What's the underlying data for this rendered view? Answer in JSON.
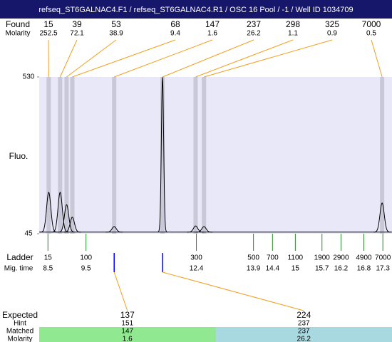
{
  "title": "refseq_ST6GALNAC4.F1 / refseq_ST6GALNAC4.R1 / OSC 16 Pool / -1 / Well ID 1034709",
  "chart_data": {
    "type": "electropherogram",
    "found_label": "Found",
    "molarity_label": "Molarity",
    "found": [
      {
        "size": 15,
        "molarity": 252.5,
        "time": 8.52,
        "height": 173
      },
      {
        "size": 39,
        "molarity": 72.1,
        "time": 8.82,
        "height": 173
      },
      {
        "size": 53,
        "molarity": 38.9,
        "time": 8.99,
        "height": 135
      },
      {
        "size": 68,
        "molarity": 9.4,
        "time": 9.14,
        "height": 96
      },
      {
        "size": 147,
        "molarity": 1.6,
        "time": 10.24,
        "height": 67
      },
      {
        "size": 237,
        "molarity": 26.2,
        "time": 11.51,
        "height": 530
      },
      {
        "size": 298,
        "molarity": 1.1,
        "time": 12.38,
        "height": 69
      },
      {
        "size": 325,
        "molarity": 0.9,
        "time": 12.6,
        "height": 67
      },
      {
        "size": 7000,
        "molarity": 0.5,
        "time": 17.28,
        "height": 140
      }
    ],
    "ylabel": "Fluo.",
    "ylim": [
      45,
      530
    ],
    "yticks": [
      45,
      530
    ],
    "xlim": [
      8.27,
      17.54
    ],
    "baseline": 50,
    "plot_color": "#e8e8f8",
    "band_color": "#c8c8d8",
    "ladder_label": "Ladder",
    "mig_time_label": "Mig. time",
    "ladder": {
      "sizes": [
        15,
        100,
        300,
        500,
        700,
        1100,
        1900,
        2900,
        4900,
        7000
      ],
      "times": [
        8.5,
        9.5,
        12.4,
        13.9,
        14.4,
        15,
        15.7,
        16.2,
        16.8,
        17.3
      ]
    },
    "expected": {
      "row_labels": [
        "Expected",
        "Hint",
        "Matched",
        "Molarity"
      ],
      "entries": [
        {
          "expected": 137,
          "hint": 151,
          "matched": 147,
          "molarity": 1.6,
          "color": "#90e890"
        },
        {
          "expected": 224,
          "hint": 237,
          "matched": 237,
          "molarity": 26.2,
          "color": "#a8d8e0"
        }
      ]
    }
  }
}
